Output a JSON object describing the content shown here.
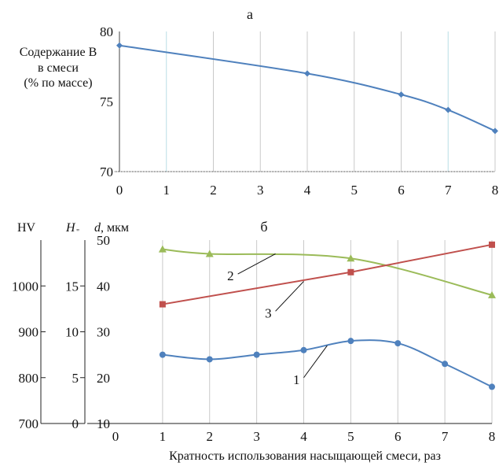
{
  "chart_data": [
    {
      "type": "line",
      "panel_label": "а",
      "ylabel_lines": [
        "Содержание В",
        "в смеси",
        "(% по массе)"
      ],
      "x": [
        0,
        1,
        2,
        3,
        4,
        5,
        6,
        7,
        8
      ],
      "x_ticks": [
        "0",
        "1",
        "2",
        "3",
        "4",
        "5",
        "6",
        "7",
        "8"
      ],
      "y_ticks": [
        "70",
        "75",
        "80"
      ],
      "ylim": [
        70,
        80
      ],
      "xlim": [
        0,
        8
      ],
      "grid": true,
      "series": [
        {
          "color": "#4f81bd",
          "marker": "diamond",
          "points": [
            [
              0,
              79.0
            ],
            [
              4,
              77.0
            ],
            [
              6,
              75.5
            ],
            [
              7,
              74.4
            ],
            [
              8,
              72.9
            ]
          ]
        }
      ]
    },
    {
      "type": "line",
      "panel_label": "б",
      "xlabel": "Кратность использования насыщающей смеси, раз",
      "x_ticks": [
        "0",
        "1",
        "2",
        "3",
        "4",
        "5",
        "6",
        "7",
        "8"
      ],
      "xlim": [
        0,
        8
      ],
      "axes": {
        "hv": {
          "label": "HV",
          "ticks": [
            "700",
            "800",
            "900",
            "1000"
          ],
          "range": [
            700,
            1100
          ]
        },
        "h": {
          "label": "H",
          "subscript": "\"",
          "ticks": [
            "0",
            "5",
            "10",
            "15"
          ],
          "range": [
            0,
            20
          ]
        },
        "d": {
          "label_italic": "d",
          "label_rest": ", мкм",
          "ticks": [
            "10",
            "20",
            "30",
            "40",
            "50"
          ],
          "range": [
            10,
            50
          ]
        }
      },
      "grid": true,
      "series": [
        {
          "label": "1",
          "color": "#4f81bd",
          "marker": "circle",
          "points": [
            [
              1,
              25
            ],
            [
              2,
              24
            ],
            [
              3,
              25
            ],
            [
              4,
              26
            ],
            [
              5,
              28
            ],
            [
              6,
              27.5
            ],
            [
              7,
              23
            ],
            [
              8,
              18
            ]
          ]
        },
        {
          "label": "2",
          "color": "#9bbb59",
          "marker": "triangle",
          "points": [
            [
              1,
              48
            ],
            [
              2,
              47
            ],
            [
              5,
              46
            ],
            [
              8,
              38
            ]
          ]
        },
        {
          "label": "3",
          "color": "#c0504d",
          "marker": "square",
          "points": [
            [
              1,
              36
            ],
            [
              5,
              43
            ],
            [
              8,
              49
            ]
          ]
        }
      ]
    }
  ]
}
